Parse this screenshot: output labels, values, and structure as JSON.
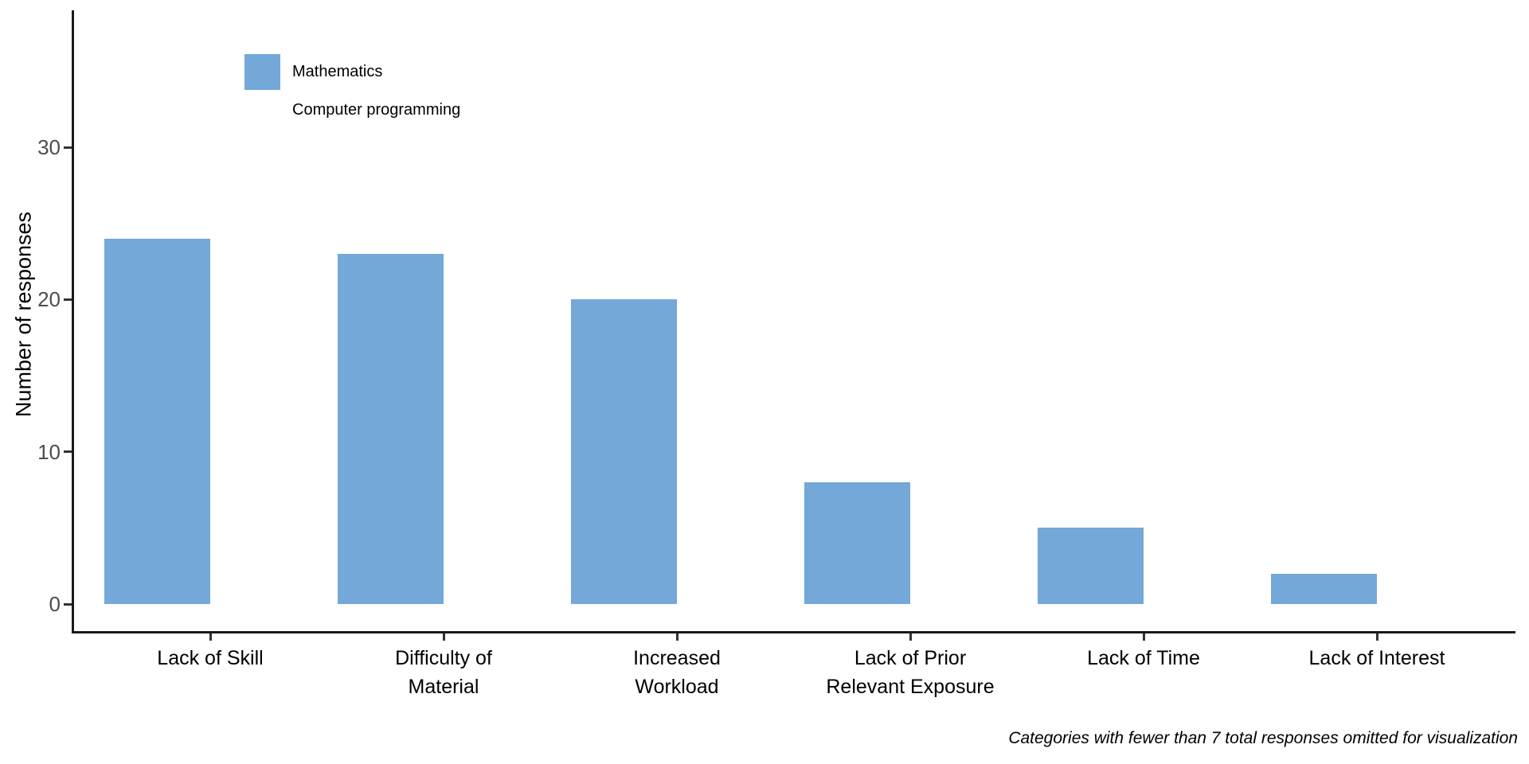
{
  "chart_data": {
    "type": "bar",
    "title": "",
    "xlabel": "",
    "ylabel": "Number of responses",
    "categories": [
      "Lack of Skill",
      "Difficulty of Material",
      "Increased Workload",
      "Lack of Prior Relevant Exposure",
      "Lack of Time",
      "Lack of Interest"
    ],
    "category_label_lines": [
      [
        "Lack of Skill"
      ],
      [
        "Difficulty of",
        "Material"
      ],
      [
        "Increased",
        "Workload"
      ],
      [
        "Lack of Prior",
        "Relevant Exposure"
      ],
      [
        "Lack of Time"
      ],
      [
        "Lack of Interest"
      ]
    ],
    "series": [
      {
        "name": "Mathematics",
        "color": "#73a8d8",
        "values": [
          24,
          23,
          20,
          8,
          5,
          2
        ]
      }
    ],
    "yticks": [
      0,
      10,
      20,
      30
    ],
    "ytick_labels": [
      "0",
      "10",
      "20",
      "30"
    ],
    "ylim": [
      0,
      39
    ],
    "grid": false,
    "legend": {
      "position": "top-left-inside",
      "entries": [
        {
          "label": "Mathematics",
          "color": "#73a8d8"
        },
        {
          "label": "Computer programming",
          "color": "#ffffff"
        }
      ]
    },
    "caption": "Categories with fewer than 7 total responses omitted for visualization",
    "colors": {
      "bar": "#73a8d8",
      "axis_line": "#1a1a1a",
      "tick_mark": "#333333",
      "y_tick_text": "#4d4d4d",
      "x_tick_text": "#000000",
      "background": "#ffffff"
    }
  }
}
